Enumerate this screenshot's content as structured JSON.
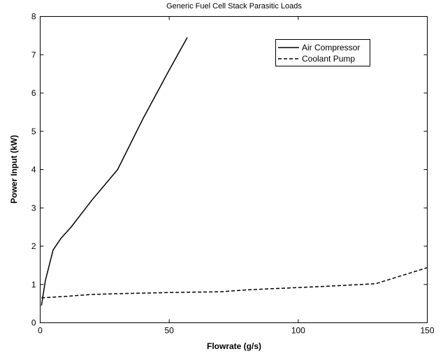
{
  "chart_data": {
    "type": "line",
    "title": "Generic Fuel Cell Stack Parasitic Loads",
    "xlabel": "Flowrate (g/s)",
    "ylabel": "Power Input (kW)",
    "xlim": [
      0,
      150
    ],
    "ylim": [
      0,
      8
    ],
    "xticks": [
      0,
      50,
      100,
      150
    ],
    "yticks": [
      0,
      1,
      2,
      3,
      4,
      5,
      6,
      7,
      8
    ],
    "grid": false,
    "legend_position": "top-right",
    "series": [
      {
        "name": "Air Compressor",
        "line_style": "solid",
        "color": "#000000",
        "x": [
          0.5,
          2,
          5,
          8,
          12,
          20,
          30,
          40,
          50,
          57
        ],
        "y": [
          0.45,
          1.1,
          1.9,
          2.2,
          2.5,
          3.2,
          4.0,
          5.35,
          6.6,
          7.45
        ]
      },
      {
        "name": "Coolant Pump",
        "line_style": "dashed",
        "color": "#000000",
        "x": [
          0.5,
          10,
          20,
          30,
          50,
          70,
          80,
          110,
          130,
          150
        ],
        "y": [
          0.65,
          0.69,
          0.74,
          0.76,
          0.79,
          0.81,
          0.86,
          0.95,
          1.02,
          1.44
        ]
      }
    ]
  }
}
